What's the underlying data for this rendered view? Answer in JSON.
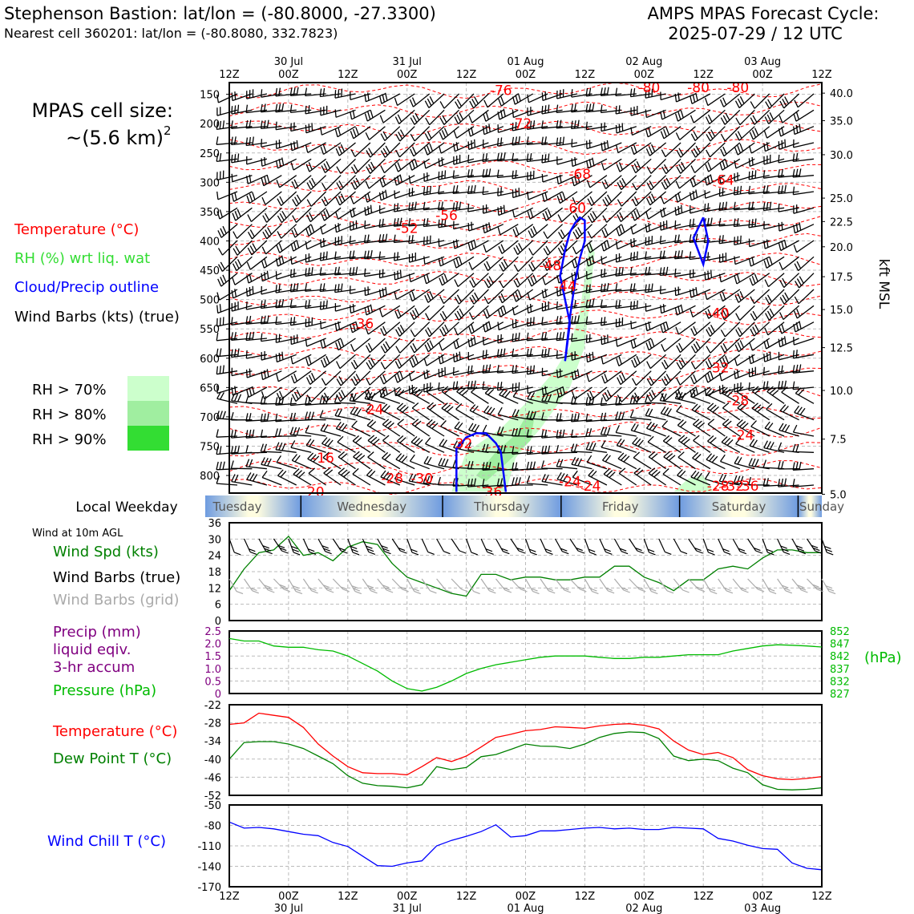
{
  "header": {
    "title_left": "Stephenson Bastion: lat/lon = (-80.8000, -27.3300)",
    "subtitle_left": "Nearest cell 360201: lat/lon = (-80.8080, 332.7823)",
    "title_right_1": "AMPS MPAS Forecast Cycle:",
    "title_right_2": "2025-07-29 / 12 UTC"
  },
  "colors": {
    "temperature": "#ff0000",
    "rh": "#33dd33",
    "rh70": "#ccffcc",
    "rh80": "#a0eea0",
    "rh90": "#33dd33",
    "cloud": "#0000ff",
    "wind_speed": "#008000",
    "grid_barbs": "#aaaaaa",
    "precip": "#800080",
    "pressure": "#00bb00",
    "dewpoint": "#008000",
    "wind_chill": "#0000ff"
  },
  "time_axis": {
    "hour_labels": [
      "12Z",
      "00Z",
      "12Z",
      "00Z",
      "12Z",
      "00Z",
      "12Z",
      "00Z",
      "12Z",
      "00Z",
      "12Z"
    ],
    "date_labels": [
      "30 Jul",
      "31 Jul",
      "01 Aug",
      "02 Aug",
      "03 Aug"
    ]
  },
  "left_legend": {
    "cell_size_1": "MPAS cell size:",
    "cell_size_2": "~(5.6 km)",
    "cell_size_sup": "2",
    "temperature": "Temperature (°C)",
    "rh": "RH (%) wrt liq. wat",
    "cloud": "Cloud/Precip outline",
    "barbs": "Wind Barbs (kts) (true)",
    "rh70": "RH > 70%",
    "rh80": "RH > 80%",
    "rh90": "RH > 90%"
  },
  "weekday": {
    "title": "Local Weekday",
    "days": [
      "Tuesday",
      "Wednesday",
      "Thursday",
      "Friday",
      "Saturday",
      "Sunday"
    ]
  },
  "panel_legends": {
    "wind_note": "Wind at 10m AGL",
    "wind_speed": "Wind Spd (kts)",
    "wind_barbs": "Wind Barbs (true)",
    "wind_barbs_grid": "Wind Barbs (grid)",
    "precip_1": "Precip (mm)",
    "precip_2": "liquid eqiv.",
    "precip_3": "3-hr accum",
    "pressure": "Pressure (hPa)",
    "pressure_unit": "(hPa)",
    "temperature": "Temperature (°C)",
    "dewpoint": "Dew Point T (°C)",
    "wind_chill": "Wind Chill T (°C)"
  },
  "chart_data": [
    {
      "type": "heatmap",
      "name": "time-height cross section",
      "x_ticks_hours": [
        0,
        12,
        24,
        36,
        48,
        60,
        72,
        84,
        96,
        108,
        120
      ],
      "y_ticks_hpa": [
        150,
        200,
        250,
        300,
        350,
        400,
        450,
        500,
        550,
        600,
        650,
        700,
        750,
        800
      ],
      "ylim_hpa": [
        130,
        830
      ],
      "right_axis_label": "kft MSL",
      "right_ticks_kft": [
        "40.0",
        "35.0",
        "30.0",
        "25.0",
        "22.5",
        "20.0",
        "17.5",
        "15.0",
        "12.5",
        "10.0",
        "7.5",
        "5.0"
      ],
      "right_ticks_hpa": [
        148,
        195,
        253,
        327,
        367,
        410,
        461,
        517,
        582,
        655,
        738,
        832
      ],
      "temperature_labels": [
        {
          "t": 44,
          "p": 356,
          "v": "-56"
        },
        {
          "t": 36,
          "p": 378,
          "v": "-52"
        },
        {
          "t": 27,
          "p": 541,
          "v": "-36"
        },
        {
          "t": 29,
          "p": 687,
          "v": "-24"
        },
        {
          "t": 19,
          "p": 770,
          "v": "-16"
        },
        {
          "t": 17,
          "p": 828,
          "v": "-20"
        },
        {
          "t": 33,
          "p": 805,
          "v": "-28"
        },
        {
          "t": 39,
          "p": 805,
          "v": "-30"
        },
        {
          "t": 47,
          "p": 745,
          "v": "-32"
        },
        {
          "t": 53,
          "p": 828,
          "v": "-36"
        },
        {
          "t": 55,
          "p": 143,
          "v": "-76"
        },
        {
          "t": 59,
          "p": 200,
          "v": "-72"
        },
        {
          "t": 71,
          "p": 286,
          "v": "-68"
        },
        {
          "t": 65,
          "p": 442,
          "v": "-48"
        },
        {
          "t": 68,
          "p": 477,
          "v": "-44"
        },
        {
          "t": 70,
          "p": 344,
          "v": "-60"
        },
        {
          "t": 85,
          "p": 138,
          "v": "-80"
        },
        {
          "t": 95,
          "p": 138,
          "v": "-80"
        },
        {
          "t": 103,
          "p": 138,
          "v": "-80"
        },
        {
          "t": 100,
          "p": 296,
          "v": "-64"
        },
        {
          "t": 99,
          "p": 523,
          "v": "-40"
        },
        {
          "t": 99,
          "p": 616,
          "v": "-32"
        },
        {
          "t": 103,
          "p": 672,
          "v": "-28"
        },
        {
          "t": 104,
          "p": 731,
          "v": "-24"
        },
        {
          "t": 69,
          "p": 810,
          "v": "-24"
        },
        {
          "t": 73,
          "p": 818,
          "v": "-24"
        },
        {
          "t": 99,
          "p": 818,
          "v": "-28"
        },
        {
          "t": 102,
          "p": 818,
          "v": "-32"
        },
        {
          "t": 105,
          "p": 818,
          "v": "-36"
        }
      ],
      "cloud_outlines": [
        {
          "points": [
            [
              68,
              605
            ],
            [
              69,
              540
            ],
            [
              67,
              460
            ],
            [
              68,
              415
            ],
            [
              69,
              385
            ],
            [
              70,
              370
            ],
            [
              71,
              360
            ],
            [
              72,
              365
            ],
            [
              72,
              400
            ],
            [
              71,
              430
            ],
            [
              70,
              470
            ],
            [
              69,
              530
            ],
            [
              68,
              605
            ]
          ]
        },
        {
          "points": [
            [
              46,
              828
            ],
            [
              46,
              755
            ],
            [
              48,
              735
            ],
            [
              50,
              728
            ],
            [
              52,
              728
            ],
            [
              54,
              745
            ],
            [
              55,
              760
            ],
            [
              56,
              828
            ]
          ]
        },
        {
          "points": [
            [
              96,
              360
            ],
            [
              94,
              395
            ],
            [
              96,
              440
            ],
            [
              97,
              400
            ],
            [
              96,
              360
            ]
          ]
        }
      ],
      "rh_regions": [
        {
          "level": 70,
          "points": [
            [
              45,
              828
            ],
            [
              48,
              760
            ],
            [
              55,
              720
            ],
            [
              62,
              660
            ],
            [
              66,
              620
            ],
            [
              69,
              580
            ],
            [
              71,
              520
            ],
            [
              72,
              460
            ],
            [
              73,
              400
            ],
            [
              74,
              420
            ],
            [
              73,
              500
            ],
            [
              72,
              580
            ],
            [
              69,
              650
            ],
            [
              63,
              720
            ],
            [
              58,
              770
            ],
            [
              56,
              828
            ]
          ]
        },
        {
          "level": 80,
          "points": [
            [
              50,
              800
            ],
            [
              54,
              760
            ],
            [
              58,
              730
            ],
            [
              60,
              700
            ],
            [
              62,
              690
            ],
            [
              61,
              740
            ],
            [
              56,
              780
            ],
            [
              52,
              810
            ]
          ]
        },
        {
          "level": 70,
          "points": [
            [
              90,
              828
            ],
            [
              93,
              805
            ],
            [
              96,
              800
            ],
            [
              98,
              828
            ]
          ]
        }
      ]
    },
    {
      "type": "line",
      "name": "10m wind speed",
      "x_hours": [
        0,
        3,
        6,
        9,
        12,
        15,
        18,
        21,
        24,
        27,
        30,
        33,
        36,
        39,
        42,
        45,
        48,
        51,
        54,
        57,
        60,
        63,
        66,
        69,
        72,
        75,
        78,
        81,
        84,
        87,
        90,
        93,
        96,
        99,
        102,
        105,
        108,
        111,
        114,
        117,
        120
      ],
      "series": [
        {
          "name": "Wind Spd (kts)",
          "values": [
            11,
            19,
            25,
            26,
            31,
            24,
            25,
            22,
            27,
            29,
            28,
            21,
            16,
            14,
            12,
            10,
            9,
            17,
            17,
            15,
            16,
            16,
            15,
            15,
            16,
            16,
            20,
            20,
            16,
            14,
            11,
            15,
            15,
            19,
            20,
            19,
            23,
            26,
            26,
            25,
            25
          ]
        }
      ],
      "ylim": [
        0,
        36
      ],
      "y_ticks": [
        0,
        6,
        12,
        18,
        24,
        30,
        36
      ]
    },
    {
      "type": "line",
      "name": "precip and pressure",
      "x_hours": [
        0,
        3,
        6,
        9,
        12,
        15,
        18,
        21,
        24,
        27,
        30,
        33,
        36,
        39,
        42,
        45,
        48,
        51,
        54,
        57,
        60,
        63,
        66,
        69,
        72,
        75,
        78,
        81,
        84,
        87,
        90,
        93,
        96,
        99,
        102,
        105,
        108,
        111,
        114,
        117,
        120
      ],
      "series": [
        {
          "name": "Pressure (hPa)",
          "values": [
            849,
            848,
            848,
            846,
            845.5,
            845.5,
            844.5,
            844,
            842,
            839,
            836,
            832,
            829,
            828,
            829.5,
            832,
            835,
            837,
            838.5,
            839.5,
            840.5,
            841.5,
            842,
            842,
            842,
            841.5,
            841,
            841,
            841.5,
            841.5,
            842,
            842.5,
            842.5,
            842.5,
            844,
            845,
            846,
            846.5,
            846.3,
            846,
            845.6
          ]
        }
      ],
      "precip_values": [],
      "ylim_precip": [
        0,
        2.5
      ],
      "precip_ticks": [
        "0",
        "0.5",
        "1.0",
        "1.5",
        "2.0",
        "2.5"
      ],
      "ylim_pressure": [
        827,
        852
      ],
      "pressure_ticks": [
        "827",
        "832",
        "837",
        "842",
        "847",
        "852"
      ]
    },
    {
      "type": "line",
      "name": "temperature and dew point",
      "x_hours": [
        0,
        3,
        6,
        9,
        12,
        15,
        18,
        21,
        24,
        27,
        30,
        33,
        36,
        39,
        42,
        45,
        48,
        51,
        54,
        57,
        60,
        63,
        66,
        69,
        72,
        75,
        78,
        81,
        84,
        87,
        90,
        93,
        96,
        99,
        102,
        105,
        108,
        111,
        114,
        117,
        120
      ],
      "series": [
        {
          "name": "Temperature (°C)",
          "values": [
            -28.5,
            -28,
            -24.8,
            -25.5,
            -26.2,
            -29.5,
            -35,
            -39,
            -42.5,
            -44.5,
            -44.8,
            -44.8,
            -45.2,
            -42.5,
            -39.5,
            -40.8,
            -39,
            -36,
            -32.8,
            -31.8,
            -30.6,
            -30.2,
            -29.3,
            -29.5,
            -29.8,
            -29,
            -28.5,
            -28.3,
            -28.8,
            -30,
            -34,
            -37,
            -38.5,
            -37.8,
            -39.5,
            -43.5,
            -45.5,
            -46.5,
            -46.8,
            -46.4,
            -45.8
          ],
          "color": "#ff0000"
        },
        {
          "name": "Dew Point T (°C)",
          "values": [
            -40,
            -34.5,
            -34.2,
            -34.2,
            -35,
            -36.5,
            -39,
            -41.5,
            -45.5,
            -48,
            -48.8,
            -49,
            -49.5,
            -48.5,
            -42.5,
            -43.5,
            -42.8,
            -39.2,
            -38.5,
            -36.8,
            -35,
            -35.7,
            -35.8,
            -36.5,
            -35,
            -32.8,
            -31.5,
            -31,
            -31.2,
            -33.2,
            -39,
            -40.5,
            -40,
            -40.5,
            -43,
            -44.5,
            -48.5,
            -50,
            -50.2,
            -50,
            -49.5
          ],
          "color": "#008000"
        }
      ],
      "ylim": [
        -52,
        -22
      ],
      "y_ticks": [
        -52,
        -46,
        -40,
        -34,
        -28,
        -22
      ]
    },
    {
      "type": "line",
      "name": "wind chill",
      "x_hours": [
        0,
        3,
        6,
        9,
        12,
        15,
        18,
        21,
        24,
        27,
        30,
        33,
        36,
        39,
        42,
        45,
        48,
        51,
        54,
        57,
        60,
        63,
        66,
        69,
        72,
        75,
        78,
        81,
        84,
        87,
        90,
        93,
        96,
        99,
        102,
        105,
        108,
        111,
        114,
        117,
        120
      ],
      "series": [
        {
          "name": "Wind Chill T (°C)",
          "values": [
            -75,
            -84,
            -83,
            -85,
            -89,
            -93,
            -95,
            -105,
            -111,
            -125,
            -139,
            -140,
            -135,
            -132,
            -110,
            -102,
            -96,
            -89,
            -79,
            -97,
            -95,
            -88,
            -88,
            -86,
            -84,
            -83,
            -85,
            -84,
            -86,
            -86,
            -83,
            -84,
            -85,
            -99,
            -103,
            -109,
            -114,
            -115,
            -135,
            -143,
            -145
          ]
        }
      ],
      "ylim": [
        -170,
        -50
      ],
      "y_ticks": [
        -170,
        -140,
        -110,
        -80,
        -50
      ]
    }
  ]
}
